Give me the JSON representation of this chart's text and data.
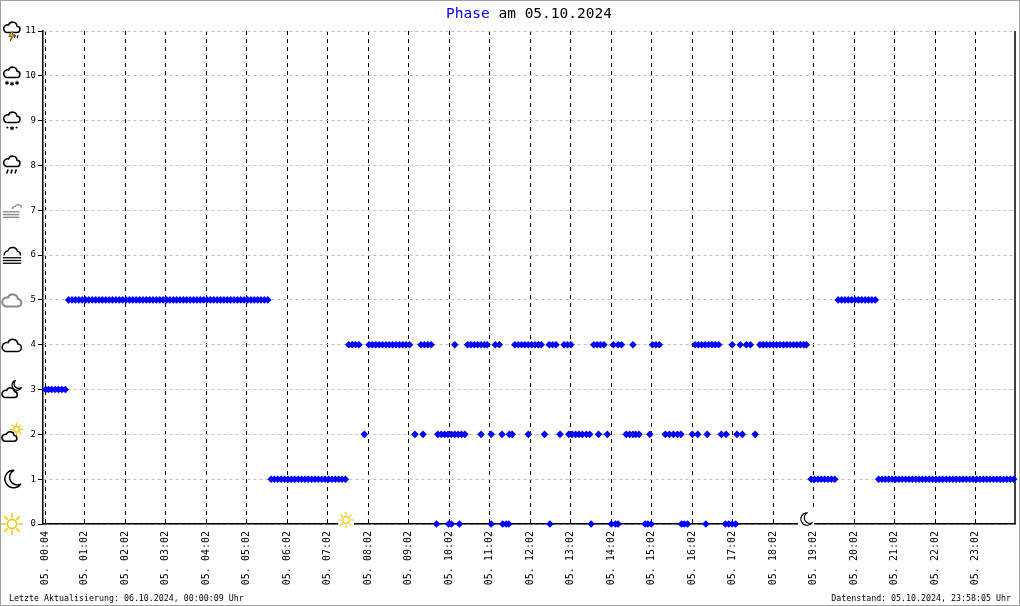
{
  "chart_data": {
    "type": "scatter",
    "title": "Phase am 05.10.2024",
    "annotations": [
      "Letzte Aktualisierung: 06.10.2024, 00:00:09 Uhr",
      "Datenstand: 05.10.2024, 23:58:05 Uhr"
    ],
    "xlim": [
      "2024-10-05T00:00",
      "2024-10-06T00:00"
    ],
    "xticks": [
      {
        "value": "2024-10-05T00:04",
        "label": "05. 00:04"
      },
      {
        "value": "2024-10-05T01:02",
        "label": "05. 01:02"
      },
      {
        "value": "2024-10-05T02:02",
        "label": "05. 02:02"
      },
      {
        "value": "2024-10-05T03:02",
        "label": "05. 03:02"
      },
      {
        "value": "2024-10-05T04:02",
        "label": "05. 04:02"
      },
      {
        "value": "2024-10-05T05:02",
        "label": "05. 05:02"
      },
      {
        "value": "2024-10-05T06:02",
        "label": "05. 06:02"
      },
      {
        "value": "2024-10-05T07:02",
        "label": "05. 07:02"
      },
      {
        "value": "2024-10-05T08:02",
        "label": "05. 08:02"
      },
      {
        "value": "2024-10-05T09:02",
        "label": "05. 09:02"
      },
      {
        "value": "2024-10-05T10:02",
        "label": "05. 10:02"
      },
      {
        "value": "2024-10-05T11:02",
        "label": "05. 11:02"
      },
      {
        "value": "2024-10-05T12:02",
        "label": "05. 12:02"
      },
      {
        "value": "2024-10-05T13:02",
        "label": "05. 13:02"
      },
      {
        "value": "2024-10-05T14:02",
        "label": "05. 14:02"
      },
      {
        "value": "2024-10-05T15:02",
        "label": "05. 15:02"
      },
      {
        "value": "2024-10-05T16:02",
        "label": "05. 16:02"
      },
      {
        "value": "2024-10-05T17:02",
        "label": "05. 17:02"
      },
      {
        "value": "2024-10-05T18:02",
        "label": "05. 18:02"
      },
      {
        "value": "2024-10-05T19:02",
        "label": "05. 19:02"
      },
      {
        "value": "2024-10-05T20:02",
        "label": "05. 20:02"
      },
      {
        "value": "2024-10-05T21:02",
        "label": "05. 21:02"
      },
      {
        "value": "2024-10-05T22:02",
        "label": "05. 22:02"
      },
      {
        "value": "2024-10-05T23:02",
        "label": "05. 23:02"
      }
    ],
    "ylim": [
      0,
      11
    ],
    "yticks": [
      0,
      1,
      2,
      3,
      4,
      5,
      6,
      7,
      8,
      9,
      10,
      11
    ],
    "grid": true,
    "marker": "diamond",
    "series": [
      {
        "color": "#0000ff",
        "x": [
          "2024-10-05T09:43",
          "2024-10-05T10:01",
          "2024-10-05T10:05",
          "2024-10-05T10:17",
          "2024-10-05T11:04",
          "2024-10-05T11:21",
          "2024-10-05T11:26",
          "2024-10-05T11:30",
          "2024-10-05T12:31",
          "2024-10-05T13:32",
          "2024-10-05T14:02",
          "2024-10-05T14:08",
          "2024-10-05T14:12",
          "2024-10-05T14:52",
          "2024-10-05T14:56",
          "2024-10-05T15:01",
          "2024-10-05T15:46",
          "2024-10-05T15:50",
          "2024-10-05T15:55",
          "2024-10-05T16:22",
          "2024-10-05T16:51",
          "2024-10-05T16:56",
          "2024-10-05T17:01",
          "2024-10-05T17:06"
        ],
        "values": [
          0,
          0,
          0,
          0,
          0,
          0,
          0,
          0,
          0,
          0,
          0,
          0,
          0,
          0,
          0,
          0,
          0,
          0,
          0,
          0,
          0,
          0,
          0,
          0
        ]
      },
      {
        "color": "#0000ff",
        "x": [
          "2024-10-05T05:38",
          "2024-10-05T05:43",
          "2024-10-05T05:48",
          "2024-10-05T05:53",
          "2024-10-05T05:58",
          "2024-10-05T06:03",
          "2024-10-05T06:08",
          "2024-10-05T06:13",
          "2024-10-05T06:18",
          "2024-10-05T06:23",
          "2024-10-05T06:28",
          "2024-10-05T06:33",
          "2024-10-05T06:38",
          "2024-10-05T06:43",
          "2024-10-05T06:48",
          "2024-10-05T06:53",
          "2024-10-05T06:58",
          "2024-10-05T07:03",
          "2024-10-05T07:08",
          "2024-10-05T07:13",
          "2024-10-05T07:18",
          "2024-10-05T07:23",
          "2024-10-05T07:28",
          "2024-10-05T18:58",
          "2024-10-05T19:03",
          "2024-10-05T19:08",
          "2024-10-05T19:13",
          "2024-10-05T19:18",
          "2024-10-05T19:23",
          "2024-10-05T19:28",
          "2024-10-05T19:33",
          "2024-10-05T20:38",
          "2024-10-05T20:43",
          "2024-10-05T20:48",
          "2024-10-05T20:53",
          "2024-10-05T20:58",
          "2024-10-05T21:03",
          "2024-10-05T21:08",
          "2024-10-05T21:13",
          "2024-10-05T21:18",
          "2024-10-05T21:23",
          "2024-10-05T21:28",
          "2024-10-05T21:33",
          "2024-10-05T21:38",
          "2024-10-05T21:43",
          "2024-10-05T21:48",
          "2024-10-05T21:53",
          "2024-10-05T21:58",
          "2024-10-05T22:03",
          "2024-10-05T22:08",
          "2024-10-05T22:13",
          "2024-10-05T22:18",
          "2024-10-05T22:23",
          "2024-10-05T22:28",
          "2024-10-05T22:33",
          "2024-10-05T22:38",
          "2024-10-05T22:43",
          "2024-10-05T22:48",
          "2024-10-05T22:53",
          "2024-10-05T22:58",
          "2024-10-05T23:03",
          "2024-10-05T23:08",
          "2024-10-05T23:13",
          "2024-10-05T23:18",
          "2024-10-05T23:23",
          "2024-10-05T23:28",
          "2024-10-05T23:33",
          "2024-10-05T23:38",
          "2024-10-05T23:43",
          "2024-10-05T23:48",
          "2024-10-05T23:53",
          "2024-10-05T23:58"
        ],
        "values": [
          1,
          1,
          1,
          1,
          1,
          1,
          1,
          1,
          1,
          1,
          1,
          1,
          1,
          1,
          1,
          1,
          1,
          1,
          1,
          1,
          1,
          1,
          1,
          1,
          1,
          1,
          1,
          1,
          1,
          1,
          1,
          1,
          1,
          1,
          1,
          1,
          1,
          1,
          1,
          1,
          1,
          1,
          1,
          1,
          1,
          1,
          1,
          1,
          1,
          1,
          1,
          1,
          1,
          1,
          1,
          1,
          1,
          1,
          1,
          1,
          1,
          1,
          1,
          1,
          1,
          1,
          1,
          1,
          1,
          1,
          1,
          1
        ]
      },
      {
        "color": "#0000ff",
        "x": [
          "2024-10-05T07:56",
          "2024-10-05T09:11",
          "2024-10-05T09:23",
          "2024-10-05T09:45",
          "2024-10-05T09:50",
          "2024-10-05T09:55",
          "2024-10-05T10:00",
          "2024-10-05T10:05",
          "2024-10-05T10:10",
          "2024-10-05T10:15",
          "2024-10-05T10:20",
          "2024-10-05T10:25",
          "2024-10-05T10:49",
          "2024-10-05T11:04",
          "2024-10-05T11:20",
          "2024-10-05T11:31",
          "2024-10-05T11:35",
          "2024-10-05T11:59",
          "2024-10-05T12:23",
          "2024-10-05T12:46",
          "2024-10-05T12:59",
          "2024-10-05T13:04",
          "2024-10-05T13:09",
          "2024-10-05T13:14",
          "2024-10-05T13:19",
          "2024-10-05T13:25",
          "2024-10-05T13:30",
          "2024-10-05T13:43",
          "2024-10-05T13:56",
          "2024-10-05T14:24",
          "2024-10-05T14:29",
          "2024-10-05T14:34",
          "2024-10-05T14:38",
          "2024-10-05T14:43",
          "2024-10-05T14:59",
          "2024-10-05T15:22",
          "2024-10-05T15:28",
          "2024-10-05T15:34",
          "2024-10-05T15:40",
          "2024-10-05T15:45",
          "2024-10-05T16:02",
          "2024-10-05T16:10",
          "2024-10-05T16:24",
          "2024-10-05T16:45",
          "2024-10-05T16:52",
          "2024-10-05T17:08",
          "2024-10-05T17:16",
          "2024-10-05T17:35"
        ],
        "values": [
          2,
          2,
          2,
          2,
          2,
          2,
          2,
          2,
          2,
          2,
          2,
          2,
          2,
          2,
          2,
          2,
          2,
          2,
          2,
          2,
          2,
          2,
          2,
          2,
          2,
          2,
          2,
          2,
          2,
          2,
          2,
          2,
          2,
          2,
          2,
          2,
          2,
          2,
          2,
          2,
          2,
          2,
          2,
          2,
          2,
          2,
          2,
          2
        ]
      },
      {
        "color": "#0000ff",
        "x": [
          "2024-10-05T00:04",
          "2024-10-05T00:08",
          "2024-10-05T00:13",
          "2024-10-05T00:18",
          "2024-10-05T00:23",
          "2024-10-05T00:28",
          "2024-10-05T00:33"
        ],
        "values": [
          3,
          3,
          3,
          3,
          3,
          3,
          3
        ]
      },
      {
        "color": "#0000ff",
        "x": [
          "2024-10-05T07:33",
          "2024-10-05T07:38",
          "2024-10-05T07:43",
          "2024-10-05T07:48",
          "2024-10-05T08:03",
          "2024-10-05T08:08",
          "2024-10-05T08:13",
          "2024-10-05T08:18",
          "2024-10-05T08:23",
          "2024-10-05T08:28",
          "2024-10-05T08:33",
          "2024-10-05T08:38",
          "2024-10-05T08:43",
          "2024-10-05T08:48",
          "2024-10-05T08:53",
          "2024-10-05T08:58",
          "2024-10-05T09:03",
          "2024-10-05T09:20",
          "2024-10-05T09:25",
          "2024-10-05T09:30",
          "2024-10-05T09:35",
          "2024-10-05T10:10",
          "2024-10-05T10:29",
          "2024-10-05T10:34",
          "2024-10-05T10:39",
          "2024-10-05T10:44",
          "2024-10-05T10:49",
          "2024-10-05T10:54",
          "2024-10-05T10:58",
          "2024-10-05T11:10",
          "2024-10-05T11:16",
          "2024-10-05T11:39",
          "2024-10-05T11:44",
          "2024-10-05T11:49",
          "2024-10-05T11:54",
          "2024-10-05T11:59",
          "2024-10-05T12:04",
          "2024-10-05T12:09",
          "2024-10-05T12:14",
          "2024-10-05T12:18",
          "2024-10-05T12:30",
          "2024-10-05T12:35",
          "2024-10-05T12:40",
          "2024-10-05T12:52",
          "2024-10-05T12:57",
          "2024-10-05T13:02",
          "2024-10-05T13:36",
          "2024-10-05T13:41",
          "2024-10-05T13:46",
          "2024-10-05T13:51",
          "2024-10-05T14:05",
          "2024-10-05T14:12",
          "2024-10-05T14:17",
          "2024-10-05T14:34",
          "2024-10-05T15:03",
          "2024-10-05T15:08",
          "2024-10-05T15:13",
          "2024-10-05T16:06",
          "2024-10-05T16:11",
          "2024-10-05T16:16",
          "2024-10-05T16:21",
          "2024-10-05T16:26",
          "2024-10-05T16:31",
          "2024-10-05T16:36",
          "2024-10-05T16:41",
          "2024-10-05T17:01",
          "2024-10-05T17:13",
          "2024-10-05T17:22",
          "2024-10-05T17:28",
          "2024-10-05T17:42",
          "2024-10-05T17:47",
          "2024-10-05T17:52",
          "2024-10-05T17:57",
          "2024-10-05T18:02",
          "2024-10-05T18:07",
          "2024-10-05T18:12",
          "2024-10-05T18:17",
          "2024-10-05T18:22",
          "2024-10-05T18:27",
          "2024-10-05T18:32",
          "2024-10-05T18:37",
          "2024-10-05T18:42",
          "2024-10-05T18:47",
          "2024-10-05T18:51"
        ],
        "values": [
          4,
          4,
          4,
          4,
          4,
          4,
          4,
          4,
          4,
          4,
          4,
          4,
          4,
          4,
          4,
          4,
          4,
          4,
          4,
          4,
          4,
          4,
          4,
          4,
          4,
          4,
          4,
          4,
          4,
          4,
          4,
          4,
          4,
          4,
          4,
          4,
          4,
          4,
          4,
          4,
          4,
          4,
          4,
          4,
          4,
          4,
          4,
          4,
          4,
          4,
          4,
          4,
          4,
          4,
          4,
          4,
          4,
          4,
          4,
          4,
          4,
          4,
          4,
          4,
          4,
          4,
          4,
          4,
          4,
          4,
          4,
          4,
          4,
          4,
          4,
          4,
          4,
          4,
          4,
          4,
          4,
          4,
          4,
          4
        ]
      },
      {
        "color": "#0000ff",
        "x": [
          "2024-10-05T00:38",
          "2024-10-05T00:43",
          "2024-10-05T00:48",
          "2024-10-05T00:53",
          "2024-10-05T00:58",
          "2024-10-05T01:03",
          "2024-10-05T01:08",
          "2024-10-05T01:13",
          "2024-10-05T01:18",
          "2024-10-05T01:23",
          "2024-10-05T01:28",
          "2024-10-05T01:33",
          "2024-10-05T01:38",
          "2024-10-05T01:43",
          "2024-10-05T01:48",
          "2024-10-05T01:53",
          "2024-10-05T01:58",
          "2024-10-05T02:03",
          "2024-10-05T02:08",
          "2024-10-05T02:13",
          "2024-10-05T02:18",
          "2024-10-05T02:23",
          "2024-10-05T02:28",
          "2024-10-05T02:33",
          "2024-10-05T02:38",
          "2024-10-05T02:43",
          "2024-10-05T02:48",
          "2024-10-05T02:53",
          "2024-10-05T02:58",
          "2024-10-05T03:03",
          "2024-10-05T03:08",
          "2024-10-05T03:13",
          "2024-10-05T03:18",
          "2024-10-05T03:23",
          "2024-10-05T03:28",
          "2024-10-05T03:33",
          "2024-10-05T03:38",
          "2024-10-05T03:43",
          "2024-10-05T03:48",
          "2024-10-05T03:53",
          "2024-10-05T03:58",
          "2024-10-05T04:03",
          "2024-10-05T04:08",
          "2024-10-05T04:13",
          "2024-10-05T04:18",
          "2024-10-05T04:23",
          "2024-10-05T04:28",
          "2024-10-05T04:33",
          "2024-10-05T04:38",
          "2024-10-05T04:43",
          "2024-10-05T04:48",
          "2024-10-05T04:53",
          "2024-10-05T04:58",
          "2024-10-05T05:03",
          "2024-10-05T05:08",
          "2024-10-05T05:13",
          "2024-10-05T05:18",
          "2024-10-05T05:23",
          "2024-10-05T05:28",
          "2024-10-05T05:33",
          "2024-10-05T19:38",
          "2024-10-05T19:43",
          "2024-10-05T19:48",
          "2024-10-05T19:53",
          "2024-10-05T19:58",
          "2024-10-05T20:03",
          "2024-10-05T20:08",
          "2024-10-05T20:13",
          "2024-10-05T20:18",
          "2024-10-05T20:23",
          "2024-10-05T20:28",
          "2024-10-05T20:33"
        ],
        "values": [
          5,
          5,
          5,
          5,
          5,
          5,
          5,
          5,
          5,
          5,
          5,
          5,
          5,
          5,
          5,
          5,
          5,
          5,
          5,
          5,
          5,
          5,
          5,
          5,
          5,
          5,
          5,
          5,
          5,
          5,
          5,
          5,
          5,
          5,
          5,
          5,
          5,
          5,
          5,
          5,
          5,
          5,
          5,
          5,
          5,
          5,
          5,
          5,
          5,
          5,
          5,
          5,
          5,
          5,
          5,
          5,
          5,
          5,
          5,
          5,
          5,
          5,
          5,
          5,
          5,
          5,
          5,
          5,
          5,
          5,
          5,
          5
        ]
      }
    ]
  }
}
